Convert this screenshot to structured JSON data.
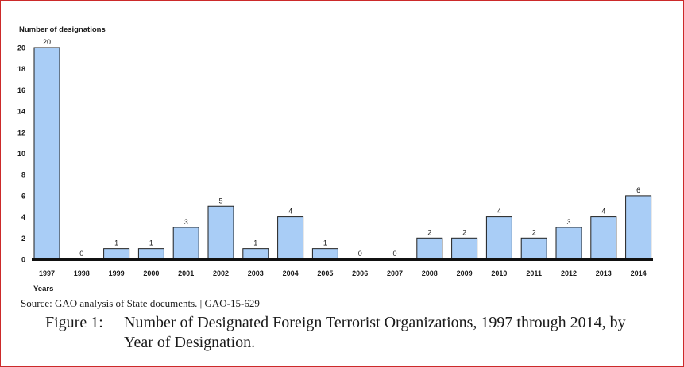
{
  "chart_data": {
    "type": "bar",
    "ylabel": "Number of designations",
    "xlabel": "Years",
    "categories": [
      "1997",
      "1998",
      "1999",
      "2000",
      "2001",
      "2002",
      "2003",
      "2004",
      "2005",
      "2006",
      "2007",
      "2008",
      "2009",
      "2010",
      "2011",
      "2012",
      "2013",
      "2014"
    ],
    "values": [
      20,
      0,
      1,
      1,
      3,
      5,
      1,
      4,
      1,
      0,
      0,
      2,
      2,
      4,
      2,
      3,
      4,
      6
    ],
    "ylim": [
      0,
      20
    ],
    "yticks": [
      0,
      2,
      4,
      6,
      8,
      10,
      12,
      14,
      16,
      18,
      20
    ],
    "grid": false,
    "bar_color": "#a9cdf6",
    "bar_edge": "#1f1f1f"
  },
  "source": "Source: GAO analysis of State documents. | GAO-15-629",
  "caption": {
    "label": "Figure 1:",
    "text": "Number of Designated Foreign Terrorist Organizations, 1997 through 2014, by Year of Designation."
  },
  "colors": {
    "frame_border": "#cc2a2a"
  }
}
